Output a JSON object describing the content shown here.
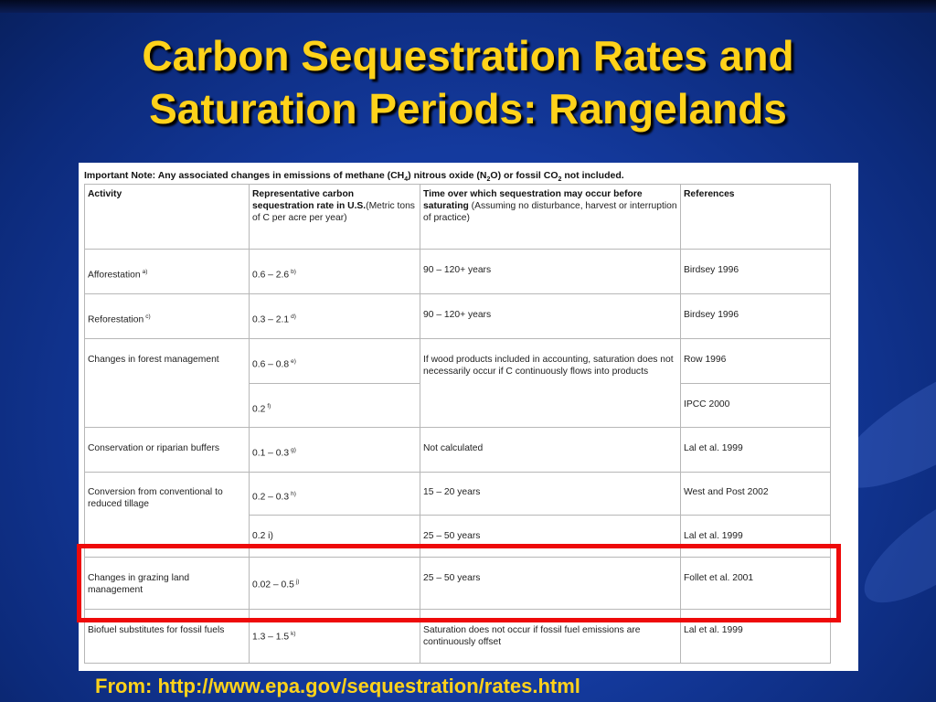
{
  "slide": {
    "title_line1": "Carbon Sequestration Rates and",
    "title_line2": "Saturation Periods: Rangelands",
    "source": "From: http://www.epa.gov/sequestration/rates.html",
    "colors": {
      "title": "#ffd21a",
      "highlight_border": "#ee0a0a",
      "background": "#143a9e"
    }
  },
  "table": {
    "note_pre": "Important Note: Any associated changes in emissions of methane (CH",
    "note_sub1": "4",
    "note_mid": ") nitrous oxide (N",
    "note_sub2": "2",
    "note_mid2": "O) or fossil CO",
    "note_sub3": "2",
    "note_post": " not included.",
    "headers": {
      "activity": "Activity",
      "rate_bold": "Representative carbon sequestration rate in U.S.",
      "rate_plain": "(Metric tons of C per acre per year)",
      "time_bold": "Time over which sequestration may occur before saturating",
      "time_plain": " (Assuming no disturbance, harvest or interruption of practice)",
      "refs": "References"
    },
    "rows": {
      "afforestation": {
        "activity": "Afforestation",
        "activity_sup": "a)",
        "rate": "0.6 – 2.6",
        "rate_sup": "b)",
        "time": "90 – 120+ years",
        "ref": "Birdsey 1996"
      },
      "reforestation": {
        "activity": "Reforestation",
        "activity_sup": "c)",
        "rate": "0.3 – 2.1",
        "rate_sup": "d)",
        "time": "90 – 120+ years",
        "ref": "Birdsey 1996"
      },
      "forest_mgmt": {
        "activity": "Changes in forest management",
        "rate1": "0.6 – 0.8",
        "rate1_sup": "e)",
        "ref1": "Row 1996",
        "rate2": "0.2",
        "rate2_sup": "f)",
        "ref2": "IPCC 2000",
        "time": "If wood products included in accounting, saturation does not necessarily occur if C continuously flows into products"
      },
      "conservation": {
        "activity": "Conservation or riparian buffers",
        "rate": "0.1 – 0.3",
        "rate_sup": "g)",
        "time": "Not calculated",
        "ref": "Lal et al. 1999"
      },
      "tillage": {
        "activity": "Conversion from conventional to reduced tillage",
        "rate1": "0.2 – 0.3",
        "rate1_sup": "h)",
        "time1": "15 – 20 years",
        "ref1": "West and Post 2002",
        "rate2": "0.2 i)",
        "time2": "25 – 50 years",
        "ref2": "Lal et al. 1999"
      },
      "grazing": {
        "activity": "Changes in grazing land management",
        "rate": "0.02 – 0.5",
        "rate_sup": "j)",
        "time": "25 – 50 years",
        "ref": "Follet et al. 2001"
      },
      "biofuel": {
        "activity": "Biofuel substitutes for fossil fuels",
        "rate": "1.3 – 1.5",
        "rate_sup": "k)",
        "time": "Saturation does not occur if fossil fuel emissions are continuously offset",
        "ref": "Lal et al. 1999"
      }
    }
  }
}
